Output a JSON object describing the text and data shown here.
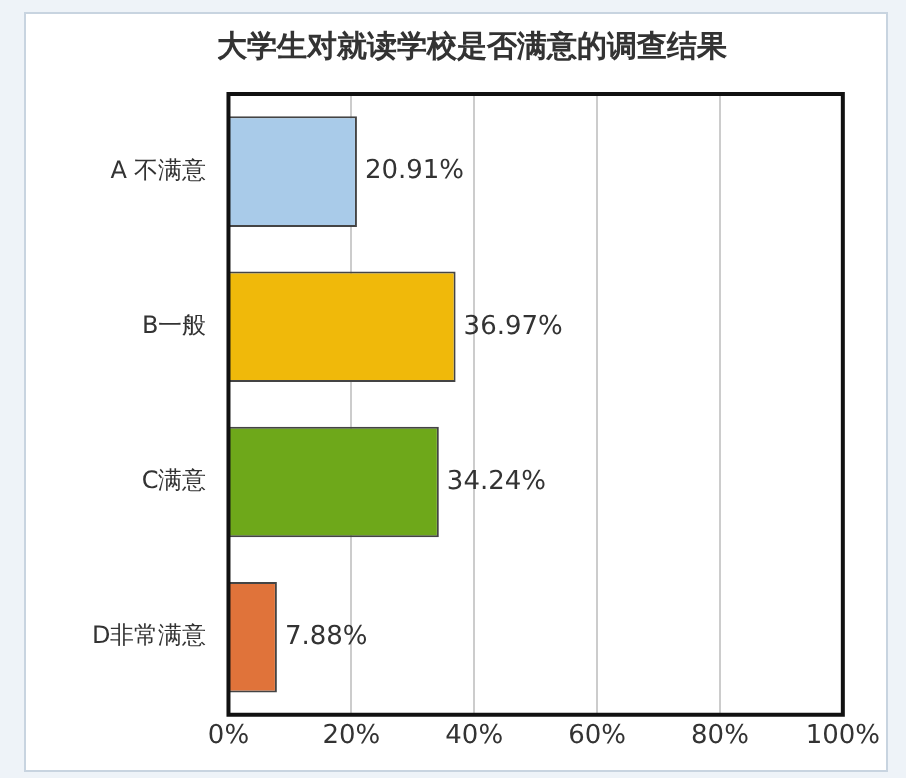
{
  "chart_data": {
    "type": "bar",
    "orientation": "horizontal",
    "title": "大学生对就读学校是否满意的调查结果",
    "categories": [
      "A 不满意",
      "B一般",
      "C满意",
      "D非常满意"
    ],
    "values": [
      20.91,
      36.97,
      34.24,
      7.88
    ],
    "colors": [
      "#a9cbe9",
      "#f0b90a",
      "#6ea81a",
      "#e0733a"
    ],
    "value_labels": [
      "20.91%",
      "36.97%",
      "34.24%",
      "7.88%"
    ],
    "xlim": [
      0,
      100
    ],
    "xticks": [
      {
        "value": 0,
        "label": "0%"
      },
      {
        "value": 20,
        "label": "20%"
      },
      {
        "value": 40,
        "label": "40%"
      },
      {
        "value": 60,
        "label": "60%"
      },
      {
        "value": 80,
        "label": "80%"
      },
      {
        "value": 100,
        "label": "100%"
      }
    ],
    "grid": "x",
    "legend": false
  }
}
